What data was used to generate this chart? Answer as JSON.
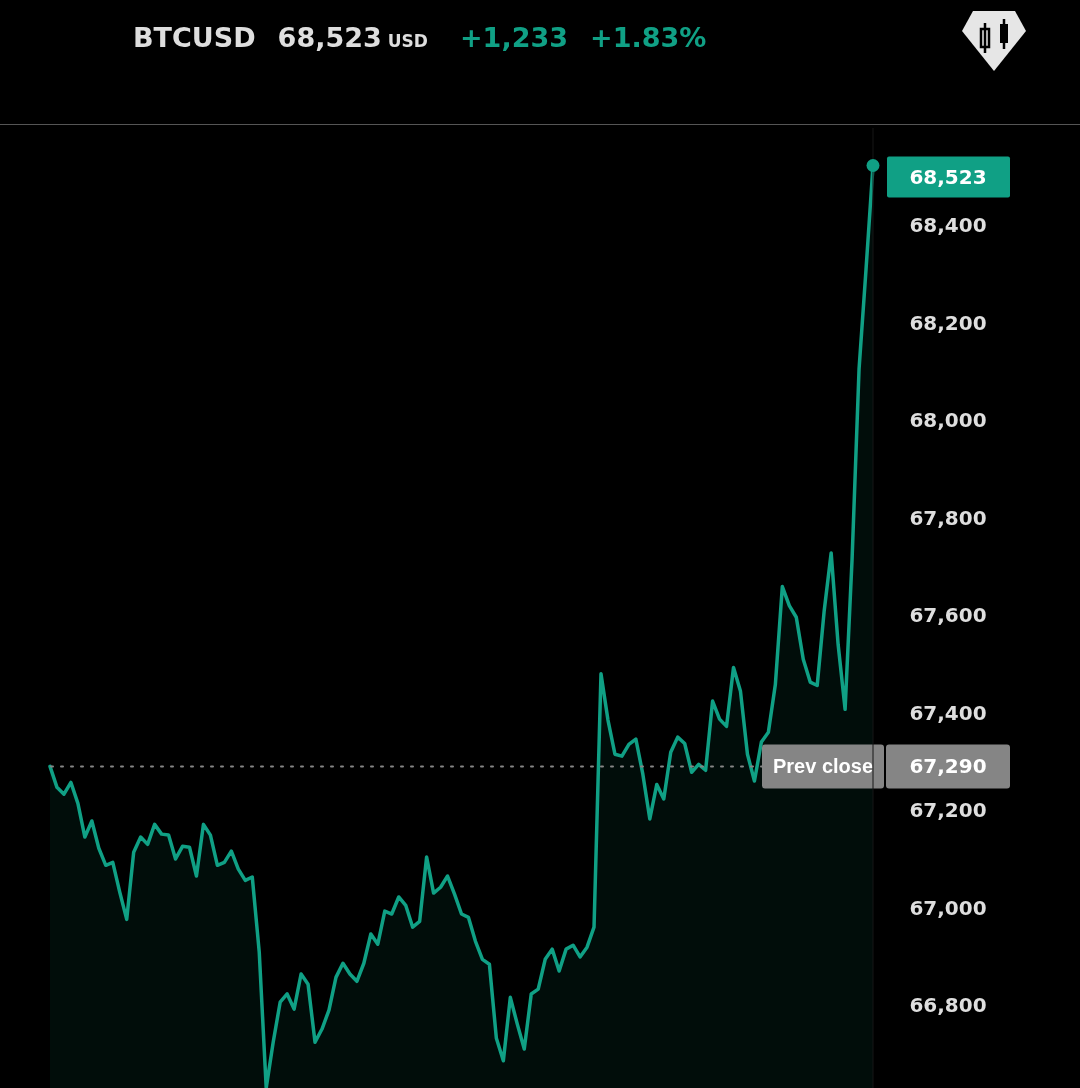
{
  "chart_data": {
    "type": "area",
    "title": "BTCUSD",
    "subtitle": "68,523 USD",
    "annotations": [
      "+1,233",
      "+1.83%"
    ],
    "categories": [
      null,
      null,
      null,
      null,
      null,
      null,
      null,
      null,
      null,
      null,
      null,
      null,
      null,
      null,
      null,
      null,
      null,
      null,
      null,
      null,
      null,
      null,
      null,
      null,
      null,
      null,
      null,
      null,
      null,
      null,
      null,
      null,
      null,
      null,
      null,
      null,
      null,
      null,
      null,
      null,
      null,
      null,
      null,
      null,
      null,
      null,
      null,
      null,
      null,
      null,
      null,
      null,
      null,
      null,
      null,
      null,
      null,
      null,
      null,
      null,
      null,
      null,
      null,
      null,
      null,
      null,
      null,
      null,
      null,
      null,
      null,
      null,
      null,
      null,
      null,
      null,
      null,
      null,
      null,
      null,
      null,
      null,
      null,
      null,
      null,
      null,
      null,
      null,
      null,
      null,
      null,
      null,
      null,
      null,
      null,
      null,
      null,
      null,
      null,
      null,
      null,
      null,
      null,
      null,
      null,
      null,
      null,
      null,
      null,
      null,
      null,
      null,
      null,
      null,
      null,
      null,
      null,
      null,
      null
    ],
    "values": [
      67290,
      67247,
      67233,
      67257,
      67214,
      67145,
      67178,
      67122,
      67087,
      67093,
      67032,
      66976,
      67114,
      67145,
      67130,
      67171,
      67151,
      67149,
      67100,
      67126,
      67124,
      67065,
      67171,
      67149,
      67087,
      67093,
      67116,
      67079,
      67056,
      67063,
      66909,
      66630,
      66724,
      66806,
      66823,
      66792,
      66864,
      66843,
      66724,
      66751,
      66790,
      66857,
      66886,
      66864,
      66849,
      66886,
      66946,
      66925,
      66993,
      66987,
      67022,
      67005,
      66960,
      66972,
      67104,
      67030,
      67042,
      67065,
      67028,
      66987,
      66980,
      66931,
      66894,
      66884,
      66732,
      66686,
      66816,
      66761,
      66710,
      66823,
      66833,
      66894,
      66915,
      66870,
      66915,
      66923,
      66899,
      66919,
      66960,
      67480,
      67385,
      67315,
      67311,
      67335,
      67346,
      67274,
      67182,
      67253,
      67223,
      67319,
      67350,
      67337,
      67278,
      67294,
      67282,
      67424,
      67387,
      67372,
      67493,
      67444,
      67315,
      67260,
      67340,
      67360,
      67458,
      67659,
      67620,
      67596,
      67510,
      67463,
      67456,
      67609,
      67728,
      67540,
      67407,
      67715,
      68105,
      68310,
      68523
    ],
    "value_labels": [
      null,
      null,
      null,
      null,
      null,
      null,
      null,
      null,
      null,
      null,
      null,
      null,
      null,
      null,
      null,
      null,
      null,
      null,
      null,
      null,
      null,
      null,
      null,
      null,
      null,
      null,
      null,
      null,
      null,
      null,
      null,
      null,
      null,
      null,
      null,
      null,
      null,
      null,
      null,
      null,
      null,
      null,
      null,
      null,
      null,
      null,
      null,
      null,
      null,
      null,
      null,
      null,
      null,
      null,
      null,
      null,
      null,
      null,
      null,
      null,
      null,
      null,
      null,
      null,
      null,
      null,
      null,
      null,
      null,
      null,
      null,
      null,
      null,
      null,
      null,
      null,
      null,
      null,
      null,
      null,
      null,
      null,
      null,
      null,
      null,
      null,
      null,
      null,
      null,
      null,
      null,
      null,
      null,
      null,
      null,
      null,
      null,
      null,
      null,
      null,
      null,
      null,
      null,
      null,
      null,
      null,
      null,
      null,
      null,
      null,
      null,
      null,
      null,
      null,
      null,
      null,
      null,
      null,
      "68,523"
    ],
    "color": "#10a085",
    "ylim": [
      66630,
      68600
    ],
    "yticks": [
      {
        "value": 66800,
        "label": "66,800"
      },
      {
        "value": 67000,
        "label": "67,000"
      },
      {
        "value": 67200,
        "label": "67,200"
      },
      {
        "value": 67290,
        "label": "67,290"
      },
      {
        "value": 67400,
        "label": "67,400"
      },
      {
        "value": 67600,
        "label": "67,600"
      },
      {
        "value": 67800,
        "label": "67,800"
      },
      {
        "value": 68000,
        "label": "68,000"
      },
      {
        "value": 68200,
        "label": "68,200"
      },
      {
        "value": 68400,
        "label": "68,400"
      }
    ],
    "tick_labels": "y",
    "ref_lines": [
      {
        "axis": "y",
        "value": 67290,
        "label": "Prev close",
        "color": "#858585",
        "line_style": "dotted"
      }
    ]
  }
}
